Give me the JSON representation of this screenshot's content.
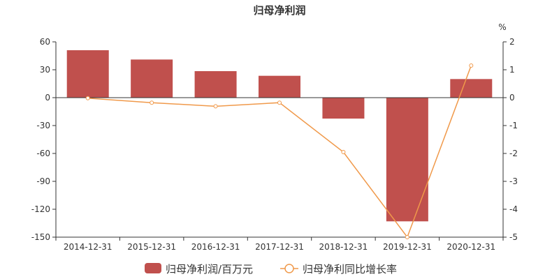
{
  "chart_data": {
    "type": "bar+line",
    "title": "归母净利润",
    "categories": [
      "2014-12-31",
      "2015-12-31",
      "2016-12-31",
      "2017-12-31",
      "2018-12-31",
      "2019-12-31",
      "2020-12-31"
    ],
    "series": [
      {
        "name": "归母净利润/百万元",
        "type": "bar",
        "axis": "left",
        "color": "#c0504d",
        "values": [
          51,
          41,
          28.5,
          23.5,
          -22.5,
          -133,
          20
        ]
      },
      {
        "name": "归母净利同比增长率",
        "type": "line",
        "axis": "right",
        "color": "#f0994a",
        "values": [
          -0.02,
          -0.18,
          -0.31,
          -0.18,
          -1.95,
          -5.0,
          1.15
        ]
      }
    ],
    "y_left": {
      "min": -150,
      "max": 60,
      "ticks": [
        60,
        30,
        0,
        -30,
        -60,
        -90,
        -120,
        -150
      ]
    },
    "y_right": {
      "min": -5,
      "max": 2,
      "ticks": [
        2,
        1,
        0,
        -1,
        -2,
        -3,
        -4,
        -5
      ],
      "unit": "%"
    },
    "legend_position": "bottom",
    "grid": false
  }
}
